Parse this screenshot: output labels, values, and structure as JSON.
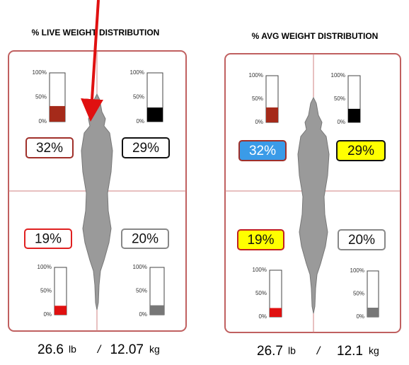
{
  "gauge_range": [
    0,
    100
  ],
  "gauge_ticks": [
    {
      "value": 100,
      "label": "100%"
    },
    {
      "value": 50,
      "label": "50%"
    },
    {
      "value": 0,
      "label": "0%"
    }
  ],
  "panels": [
    {
      "title": "% LIVE WEIGHT DISTRIBUTION",
      "quadrants": [
        {
          "value": 32,
          "value_label": "32%",
          "color": "#a52a1a"
        },
        {
          "value": 29,
          "value_label": "29%",
          "color": "#000000"
        },
        {
          "value": 19,
          "value_label": "19%",
          "color": "#e01010"
        },
        {
          "value": 20,
          "value_label": "20%",
          "color": "#777777"
        }
      ],
      "weight": {
        "lb": "26.6",
        "lb_unit": "lb",
        "separator": "/",
        "kg": "12.07",
        "kg_unit": "kg"
      }
    },
    {
      "title": "% AVG WEIGHT DISTRIBUTION",
      "quadrants": [
        {
          "value": 32,
          "value_label": "32%",
          "color": "#a52a1a"
        },
        {
          "value": 29,
          "value_label": "29%",
          "color": "#000000"
        },
        {
          "value": 19,
          "value_label": "19%",
          "color": "#e01010"
        },
        {
          "value": 20,
          "value_label": "20%",
          "color": "#777777"
        }
      ],
      "weight": {
        "lb": "26.7",
        "lb_unit": "lb",
        "separator": "/",
        "kg": "12.1",
        "kg_unit": "kg"
      }
    }
  ]
}
